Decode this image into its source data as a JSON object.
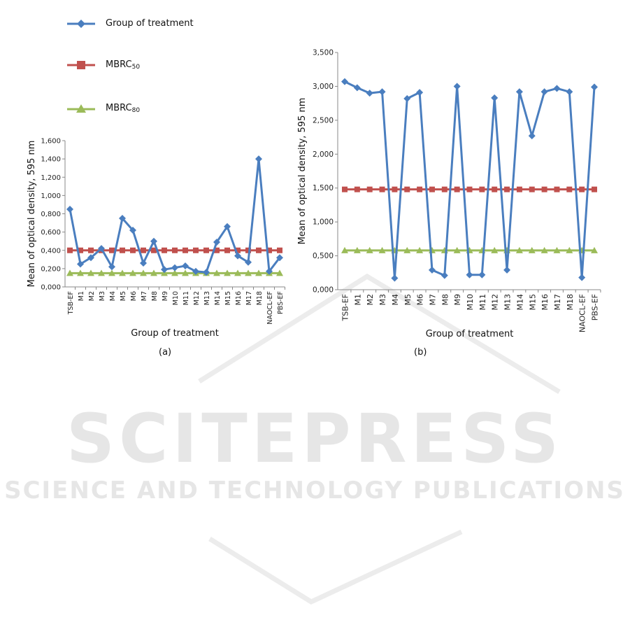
{
  "legend": {
    "items": [
      {
        "label": "Group of treatment",
        "color": "#4a7ebf",
        "marker": "diamond"
      },
      {
        "label_main": "MBRC",
        "label_sub": "50",
        "color": "#c0504d",
        "marker": "square"
      },
      {
        "label_main": "MBRC",
        "label_sub": "80",
        "color": "#9bbb59",
        "marker": "triangle"
      }
    ]
  },
  "watermark": {
    "main": "SCITEPRESS",
    "sub": "SCIENCE AND TECHNOLOGY PUBLICATIONS",
    "color": "#e3e3e3"
  },
  "chart_data": [
    {
      "type": "line",
      "panel": "(a)",
      "xlabel": "Group of treatment",
      "ylabel": "Mean of optical density, 595 nm",
      "ylim": [
        0,
        1.6
      ],
      "y_ticks": [
        "0,000",
        "0,200",
        "0,400",
        "0,600",
        "0,800",
        "1,000",
        "1,200",
        "1,400",
        "1,600"
      ],
      "grid": false,
      "categories": [
        "TSB-EF",
        "M1",
        "M2",
        "M3",
        "M4",
        "M5",
        "M6",
        "M7",
        "M8",
        "M9",
        "M10",
        "M11",
        "M12",
        "M13",
        "M14",
        "M15",
        "M16",
        "M17",
        "M18",
        "NAOCL-EF",
        "PBS-EF"
      ],
      "series": [
        {
          "name": "Group of treatment",
          "color": "#4a7ebf",
          "marker": "diamond",
          "values": [
            0.85,
            0.25,
            0.32,
            0.42,
            0.22,
            0.75,
            0.62,
            0.26,
            0.5,
            0.19,
            0.21,
            0.23,
            0.17,
            0.16,
            0.49,
            0.66,
            0.34,
            0.27,
            1.4,
            0.17,
            0.32
          ]
        },
        {
          "name": "MBRC50",
          "color": "#c0504d",
          "marker": "square",
          "values": [
            0.4,
            0.4,
            0.4,
            0.4,
            0.4,
            0.4,
            0.4,
            0.4,
            0.4,
            0.4,
            0.4,
            0.4,
            0.4,
            0.4,
            0.4,
            0.4,
            0.4,
            0.4,
            0.4,
            0.4,
            0.4
          ]
        },
        {
          "name": "MBRC80",
          "color": "#9bbb59",
          "marker": "triangle",
          "values": [
            0.15,
            0.15,
            0.15,
            0.15,
            0.15,
            0.15,
            0.15,
            0.15,
            0.15,
            0.15,
            0.15,
            0.15,
            0.15,
            0.15,
            0.15,
            0.15,
            0.15,
            0.15,
            0.15,
            0.15,
            0.15
          ]
        }
      ]
    },
    {
      "type": "line",
      "panel": "(b)",
      "xlabel": "Group of treatment",
      "ylabel": "Mean of optical density, 595 nm",
      "ylim": [
        0,
        3.5
      ],
      "y_ticks": [
        "0,000",
        "0,500",
        "1,000",
        "1,500",
        "2,000",
        "2,500",
        "3,000",
        "3,500"
      ],
      "grid": false,
      "categories": [
        "TSB-EF",
        "M1",
        "M2",
        "M3",
        "M4",
        "M5",
        "M6",
        "M7",
        "M8",
        "M9",
        "M10",
        "M11",
        "M12",
        "M13",
        "M14",
        "M15",
        "M16",
        "M17",
        "M18",
        "NAOCL-EF",
        "PBS-EF"
      ],
      "series": [
        {
          "name": "Group of treatment",
          "color": "#4a7ebf",
          "marker": "diamond",
          "values": [
            3.07,
            2.98,
            2.9,
            2.92,
            0.17,
            2.82,
            2.91,
            0.29,
            0.21,
            3.0,
            0.22,
            0.22,
            2.83,
            0.29,
            2.92,
            2.27,
            2.92,
            2.97,
            2.92,
            0.18,
            2.99
          ]
        },
        {
          "name": "MBRC50",
          "color": "#c0504d",
          "marker": "square",
          "values": [
            1.48,
            1.48,
            1.48,
            1.48,
            1.48,
            1.48,
            1.48,
            1.48,
            1.48,
            1.48,
            1.48,
            1.48,
            1.48,
            1.48,
            1.48,
            1.48,
            1.48,
            1.48,
            1.48,
            1.48,
            1.48
          ]
        },
        {
          "name": "MBRC80",
          "color": "#9bbb59",
          "marker": "triangle",
          "values": [
            0.58,
            0.58,
            0.58,
            0.58,
            0.58,
            0.58,
            0.58,
            0.58,
            0.58,
            0.58,
            0.58,
            0.58,
            0.58,
            0.58,
            0.58,
            0.58,
            0.58,
            0.58,
            0.58,
            0.58,
            0.58
          ]
        }
      ]
    }
  ]
}
